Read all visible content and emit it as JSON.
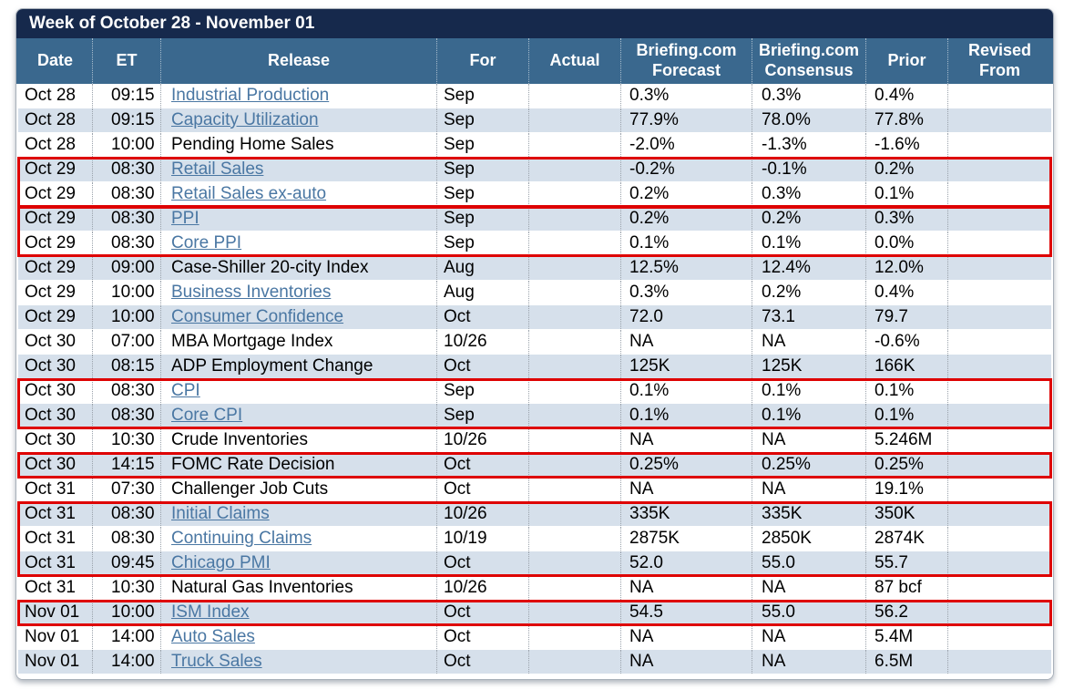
{
  "title": "Week of October 28 - November 01",
  "colors": {
    "title_bar": "#16294C",
    "header": "#3A688E",
    "row_shade": "#D6E0EB",
    "highlight_border": "#DE0202",
    "link": "#4A77A3"
  },
  "columns": [
    {
      "key": "date",
      "label": "Date"
    },
    {
      "key": "et",
      "label": "ET"
    },
    {
      "key": "release",
      "label": "Release"
    },
    {
      "key": "for",
      "label": "For"
    },
    {
      "key": "actual",
      "label": "Actual"
    },
    {
      "key": "forecast",
      "label": "Briefing.com Forecast"
    },
    {
      "key": "consensus",
      "label": "Briefing.com Consensus"
    },
    {
      "key": "prior",
      "label": "Prior"
    },
    {
      "key": "revised",
      "label": "Revised From"
    }
  ],
  "rows": [
    {
      "date": "Oct 28",
      "et": "09:15",
      "release": "Industrial Production",
      "link": true,
      "for": "Sep",
      "actual": "",
      "forecast": "0.3%",
      "consensus": "0.3%",
      "prior": "0.4%",
      "revised": "",
      "shaded": false,
      "group": null
    },
    {
      "date": "Oct 28",
      "et": "09:15",
      "release": "Capacity Utilization",
      "link": true,
      "for": "Sep",
      "actual": "",
      "forecast": "77.9%",
      "consensus": "78.0%",
      "prior": "77.8%",
      "revised": "",
      "shaded": true,
      "group": null
    },
    {
      "date": "Oct 28",
      "et": "10:00",
      "release": "Pending Home Sales",
      "link": false,
      "for": "Sep",
      "actual": "",
      "forecast": "-2.0%",
      "consensus": "-1.3%",
      "prior": "-1.6%",
      "revised": "",
      "shaded": false,
      "group": null
    },
    {
      "date": "Oct 29",
      "et": "08:30",
      "release": "Retail Sales",
      "link": true,
      "for": "Sep",
      "actual": "",
      "forecast": "-0.2%",
      "consensus": "-0.1%",
      "prior": "0.2%",
      "revised": "",
      "shaded": true,
      "group": 1
    },
    {
      "date": "Oct 29",
      "et": "08:30",
      "release": "Retail Sales ex-auto",
      "link": true,
      "for": "Sep",
      "actual": "",
      "forecast": "0.2%",
      "consensus": "0.3%",
      "prior": "0.1%",
      "revised": "",
      "shaded": false,
      "group": 1
    },
    {
      "date": "Oct 29",
      "et": "08:30",
      "release": "PPI",
      "link": true,
      "for": "Sep",
      "actual": "",
      "forecast": "0.2%",
      "consensus": "0.2%",
      "prior": "0.3%",
      "revised": "",
      "shaded": true,
      "group": 2
    },
    {
      "date": "Oct 29",
      "et": "08:30",
      "release": "Core PPI",
      "link": true,
      "for": "Sep",
      "actual": "",
      "forecast": "0.1%",
      "consensus": "0.1%",
      "prior": "0.0%",
      "revised": "",
      "shaded": false,
      "group": 2
    },
    {
      "date": "Oct 29",
      "et": "09:00",
      "release": "Case-Shiller 20-city Index",
      "link": false,
      "for": "Aug",
      "actual": "",
      "forecast": "12.5%",
      "consensus": "12.4%",
      "prior": "12.0%",
      "revised": "",
      "shaded": true,
      "group": null
    },
    {
      "date": "Oct 29",
      "et": "10:00",
      "release": "Business Inventories",
      "link": true,
      "for": "Aug",
      "actual": "",
      "forecast": "0.3%",
      "consensus": "0.2%",
      "prior": "0.4%",
      "revised": "",
      "shaded": false,
      "group": null
    },
    {
      "date": "Oct 29",
      "et": "10:00",
      "release": "Consumer Confidence",
      "link": true,
      "for": "Oct",
      "actual": "",
      "forecast": "72.0",
      "consensus": "73.1",
      "prior": "79.7",
      "revised": "",
      "shaded": true,
      "group": null
    },
    {
      "date": "Oct 30",
      "et": "07:00",
      "release": "MBA Mortgage Index",
      "link": false,
      "for": "10/26",
      "actual": "",
      "forecast": "NA",
      "consensus": "NA",
      "prior": "-0.6%",
      "revised": "",
      "shaded": false,
      "group": null
    },
    {
      "date": "Oct 30",
      "et": "08:15",
      "release": "ADP Employment Change",
      "link": false,
      "for": "Oct",
      "actual": "",
      "forecast": "125K",
      "consensus": "125K",
      "prior": "166K",
      "revised": "",
      "shaded": true,
      "group": null
    },
    {
      "date": "Oct 30",
      "et": "08:30",
      "release": "CPI",
      "link": true,
      "for": "Sep",
      "actual": "",
      "forecast": "0.1%",
      "consensus": "0.1%",
      "prior": "0.1%",
      "revised": "",
      "shaded": false,
      "group": 3
    },
    {
      "date": "Oct 30",
      "et": "08:30",
      "release": "Core CPI",
      "link": true,
      "for": "Sep",
      "actual": "",
      "forecast": "0.1%",
      "consensus": "0.1%",
      "prior": "0.1%",
      "revised": "",
      "shaded": true,
      "group": 3
    },
    {
      "date": "Oct 30",
      "et": "10:30",
      "release": "Crude Inventories",
      "link": false,
      "for": "10/26",
      "actual": "",
      "forecast": "NA",
      "consensus": "NA",
      "prior": "5.246M",
      "revised": "",
      "shaded": false,
      "group": null
    },
    {
      "date": "Oct 30",
      "et": "14:15",
      "release": "FOMC Rate Decision",
      "link": false,
      "for": "Oct",
      "actual": "",
      "forecast": "0.25%",
      "consensus": "0.25%",
      "prior": "0.25%",
      "revised": "",
      "shaded": true,
      "group": 4
    },
    {
      "date": "Oct 31",
      "et": "07:30",
      "release": "Challenger Job Cuts",
      "link": false,
      "for": "Oct",
      "actual": "",
      "forecast": "NA",
      "consensus": "NA",
      "prior": "19.1%",
      "revised": "",
      "shaded": false,
      "group": null
    },
    {
      "date": "Oct 31",
      "et": "08:30",
      "release": "Initial Claims",
      "link": true,
      "for": "10/26",
      "actual": "",
      "forecast": "335K",
      "consensus": "335K",
      "prior": "350K",
      "revised": "",
      "shaded": true,
      "group": 5
    },
    {
      "date": "Oct 31",
      "et": "08:30",
      "release": "Continuing Claims",
      "link": true,
      "for": "10/19",
      "actual": "",
      "forecast": "2875K",
      "consensus": "2850K",
      "prior": "2874K",
      "revised": "",
      "shaded": false,
      "group": 5
    },
    {
      "date": "Oct 31",
      "et": "09:45",
      "release": "Chicago PMI",
      "link": true,
      "for": "Oct",
      "actual": "",
      "forecast": "52.0",
      "consensus": "55.0",
      "prior": "55.7",
      "revised": "",
      "shaded": true,
      "group": 5
    },
    {
      "date": "Oct 31",
      "et": "10:30",
      "release": "Natural Gas Inventories",
      "link": false,
      "for": "10/26",
      "actual": "",
      "forecast": "NA",
      "consensus": "NA",
      "prior": "87 bcf",
      "revised": "",
      "shaded": false,
      "group": null
    },
    {
      "date": "Nov 01",
      "et": "10:00",
      "release": "ISM Index",
      "link": true,
      "for": "Oct",
      "actual": "",
      "forecast": "54.5",
      "consensus": "55.0",
      "prior": "56.2",
      "revised": "",
      "shaded": true,
      "group": 6
    },
    {
      "date": "Nov 01",
      "et": "14:00",
      "release": "Auto Sales",
      "link": true,
      "for": "Oct",
      "actual": "",
      "forecast": "NA",
      "consensus": "NA",
      "prior": "5.4M",
      "revised": "",
      "shaded": false,
      "group": null
    },
    {
      "date": "Nov 01",
      "et": "14:00",
      "release": "Truck Sales",
      "link": true,
      "for": "Oct",
      "actual": "",
      "forecast": "NA",
      "consensus": "NA",
      "prior": "6.5M",
      "revised": "",
      "shaded": true,
      "group": null
    }
  ]
}
